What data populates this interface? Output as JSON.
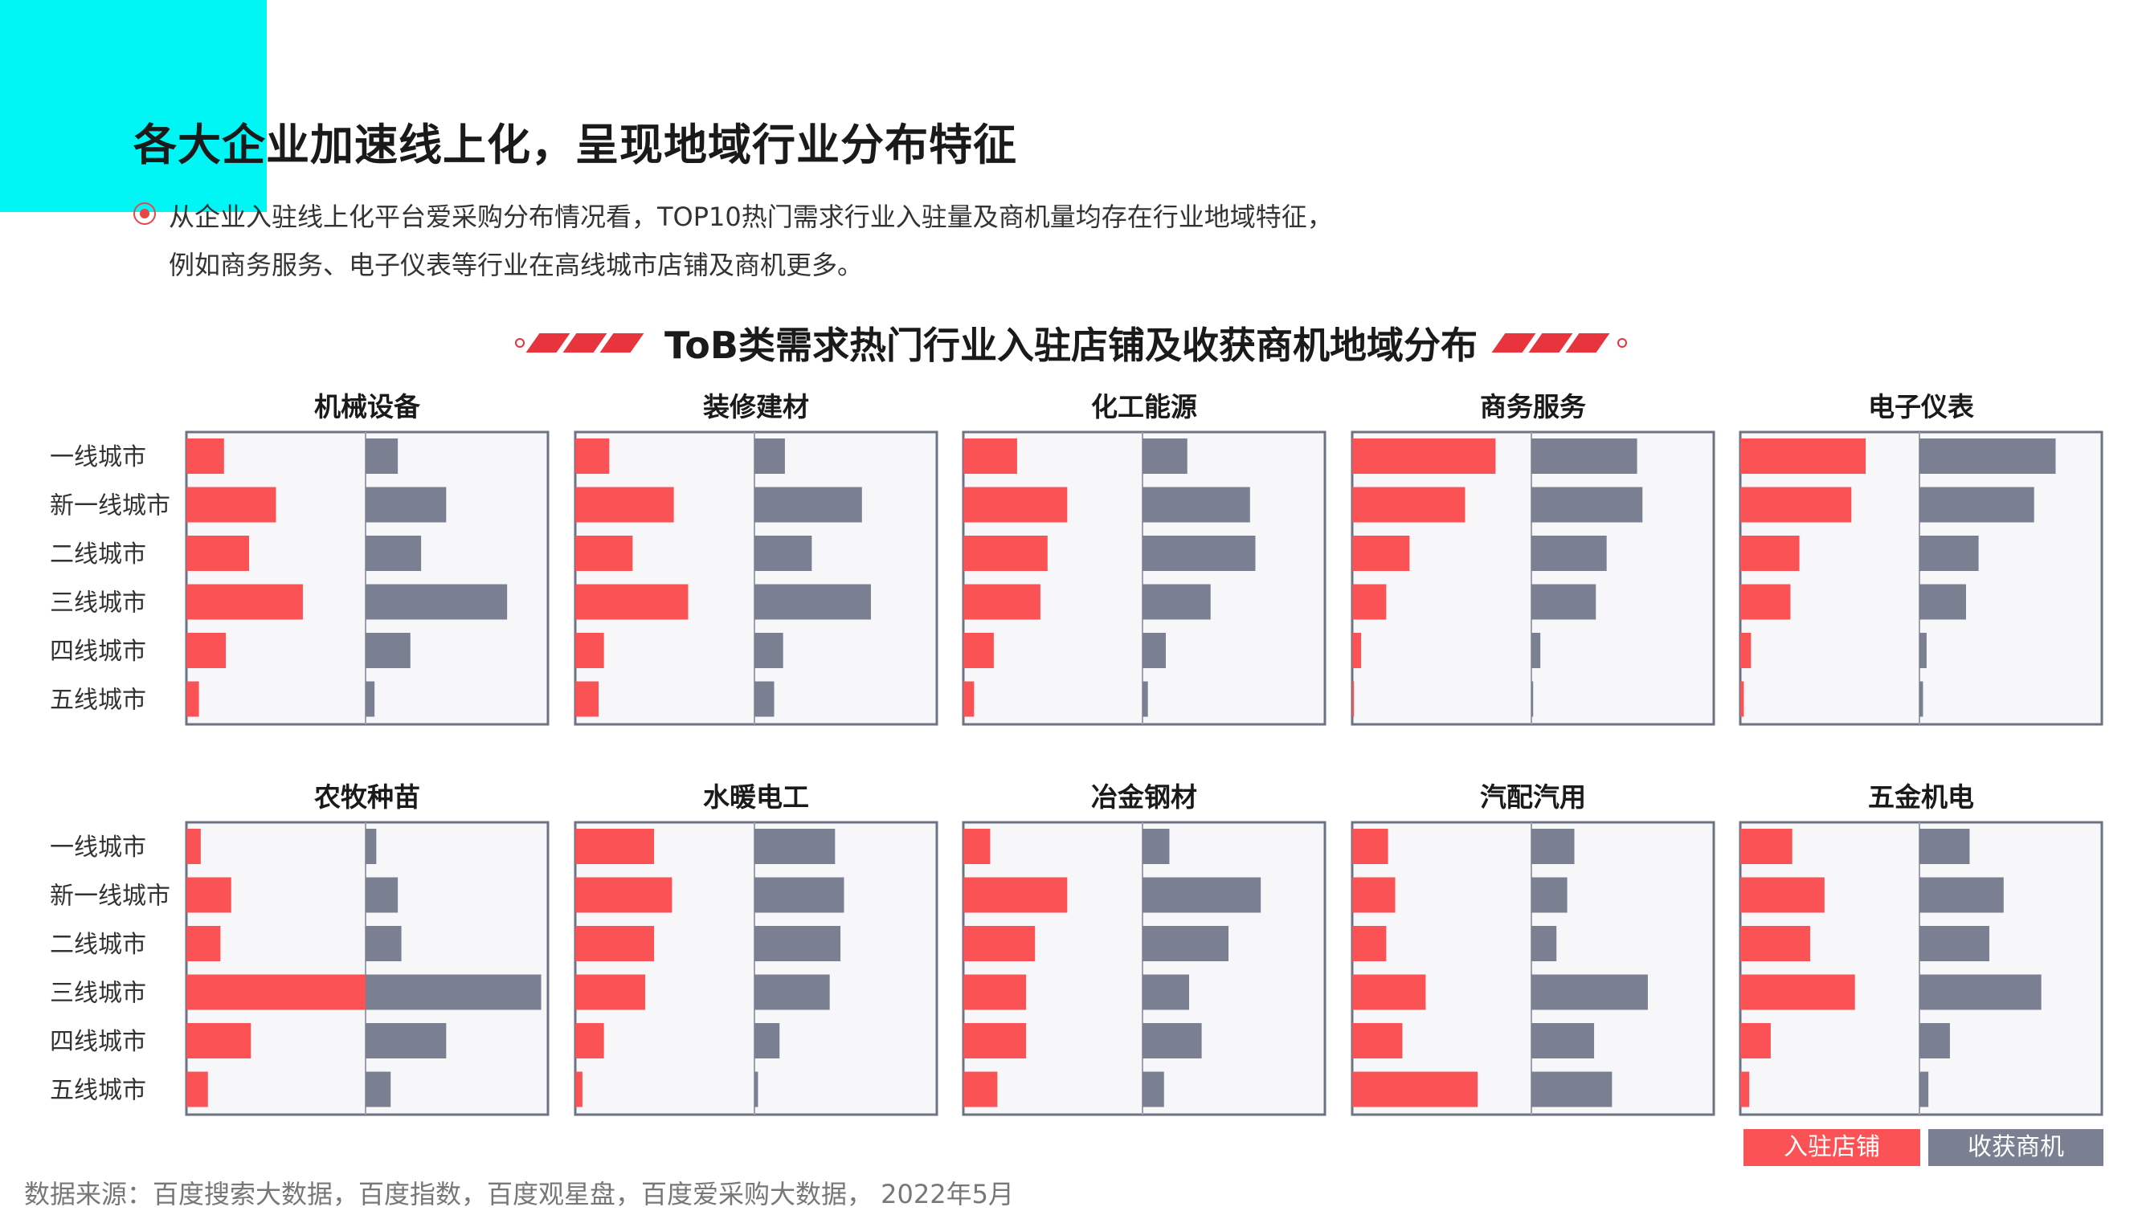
{
  "header": {
    "title": "各大企业加速线上化，呈现地域行业分布特征",
    "desc_line1": "从企业入驻线上化平台爱采购分布情况看，TOP10热门需求行业入驻量及商机量均存在行业地域特征，",
    "desc_line2": "例如商务服务、电子仪表等行业在高线城市店铺及商机更多。"
  },
  "chart_title": "ToB类需求热门行业入驻店铺及收获商机地域分布",
  "colors": {
    "store": "#fb5256",
    "opportunity": "#7a8091",
    "panel_border": "#6b7384",
    "panel_bg": "#f7f7f9",
    "accent": "#00f5f5"
  },
  "legend": {
    "store": "入驻店铺",
    "opportunity": "收获商机"
  },
  "source": "数据来源：百度搜索大数据，百度指数，百度观星盘，百度爱采购大数据， 2022年5月",
  "chart_data": {
    "type": "bar",
    "orientation": "horizontal",
    "categories": [
      "一线城市",
      "新一线城市",
      "二线城市",
      "三线城市",
      "四线城市",
      "五线城市"
    ],
    "legend_placement": "bottom-right",
    "scale": [
      0,
      100
    ],
    "panels": [
      {
        "name": "机械设备",
        "store": [
          21,
          50,
          35,
          65,
          22,
          7
        ],
        "opportunity": [
          18,
          45,
          31,
          79,
          25,
          5
        ]
      },
      {
        "name": "装修建材",
        "store": [
          19,
          55,
          32,
          63,
          16,
          13
        ],
        "opportunity": [
          17,
          60,
          32,
          65,
          16,
          11
        ]
      },
      {
        "name": "化工能源",
        "store": [
          30,
          58,
          47,
          43,
          17,
          6
        ],
        "opportunity": [
          25,
          60,
          63,
          38,
          13,
          3
        ]
      },
      {
        "name": "商务服务",
        "store": [
          80,
          63,
          32,
          19,
          5,
          1
        ],
        "opportunity": [
          59,
          62,
          42,
          36,
          5,
          1
        ]
      },
      {
        "name": "电子仪表",
        "store": [
          70,
          62,
          33,
          28,
          6,
          2
        ],
        "opportunity": [
          76,
          64,
          33,
          26,
          4,
          2
        ]
      },
      {
        "name": "农牧种苗",
        "store": [
          8,
          25,
          19,
          100,
          36,
          12
        ],
        "opportunity": [
          6,
          18,
          20,
          98,
          45,
          14
        ]
      },
      {
        "name": "水暖电工",
        "store": [
          44,
          54,
          44,
          39,
          16,
          4
        ],
        "opportunity": [
          45,
          50,
          48,
          42,
          14,
          2
        ]
      },
      {
        "name": "冶金钢材",
        "store": [
          15,
          58,
          40,
          35,
          35,
          19
        ],
        "opportunity": [
          15,
          66,
          48,
          26,
          33,
          12
        ]
      },
      {
        "name": "汽配汽用",
        "store": [
          20,
          24,
          19,
          41,
          28,
          70
        ],
        "opportunity": [
          24,
          20,
          14,
          65,
          35,
          45
        ]
      },
      {
        "name": "五金机电",
        "store": [
          29,
          47,
          39,
          64,
          17,
          5
        ],
        "opportunity": [
          28,
          47,
          39,
          68,
          17,
          5
        ]
      }
    ]
  }
}
